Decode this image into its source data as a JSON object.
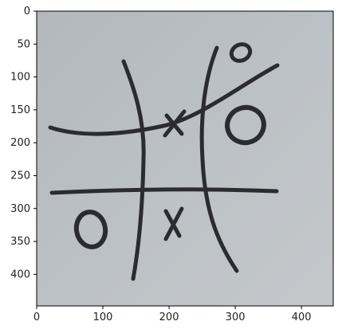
{
  "image": {
    "subject": "hand-drawn-tic-tac-toe-board",
    "paper_color": "#b9bec2",
    "ink_color": "#2a2c30",
    "grid": {
      "rows": 3,
      "cols": 3,
      "cells": [
        [
          "",
          "",
          "O"
        ],
        [
          "",
          "X",
          "O"
        ],
        [
          "O",
          "X",
          ""
        ]
      ]
    }
  },
  "axes": {
    "x_ticks": [
      0,
      100,
      200,
      300,
      400
    ],
    "y_ticks": [
      0,
      50,
      100,
      150,
      200,
      250,
      300,
      350,
      400
    ],
    "xlim": [
      0,
      448
    ],
    "ylim": [
      448,
      0
    ]
  }
}
